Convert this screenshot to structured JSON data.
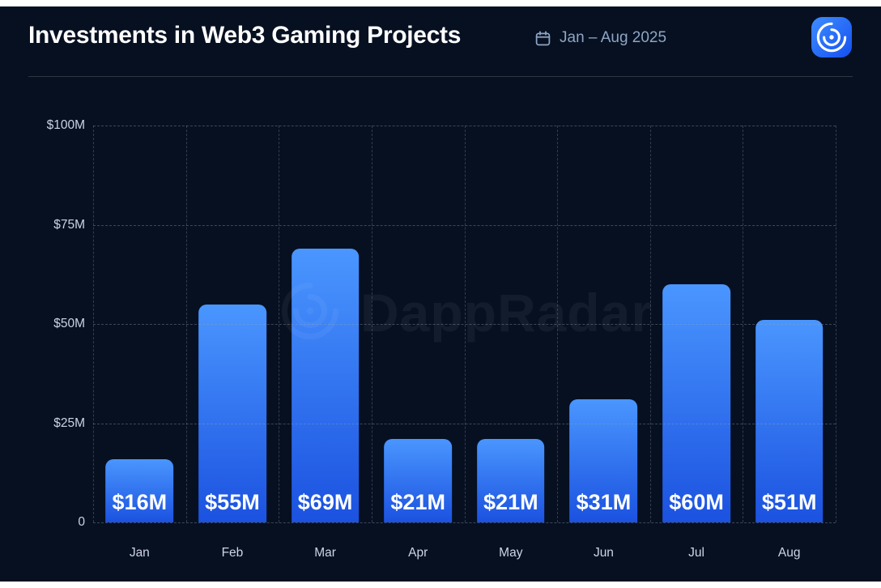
{
  "header": {
    "title": "Investments in Web3 Gaming Projects",
    "date_range": "Jan – Aug 2025"
  },
  "watermark": {
    "text": "DappRadar"
  },
  "colors": {
    "background": "#061021",
    "bar_gradient_top": "#4a96ff",
    "bar_gradient_bottom": "#1b52e0",
    "accent_logo": "#2b7bff",
    "grid": "rgba(148,163,184,0.35)",
    "value_label": "#ffffff"
  },
  "chart_data": {
    "type": "bar",
    "title": "Investments in Web3 Gaming Projects",
    "subtitle_period": "Jan – Aug 2025",
    "categories": [
      "Jan",
      "Feb",
      "Mar",
      "Apr",
      "May",
      "Jun",
      "Jul",
      "Aug"
    ],
    "values": [
      16,
      55,
      69,
      21,
      21,
      31,
      60,
      51
    ],
    "bar_labels": [
      "$16M",
      "$55M",
      "$69M",
      "$21M",
      "$21M",
      "$31M",
      "$60M",
      "$51M"
    ],
    "xlabel": "",
    "ylabel": "",
    "ylim": [
      0,
      100
    ],
    "yticks": [
      "$100M",
      "$75M",
      "$50M",
      "$25M",
      "0"
    ],
    "ytick_values": [
      100,
      75,
      50,
      25,
      0
    ],
    "grid": "dashed",
    "legend": "none"
  }
}
